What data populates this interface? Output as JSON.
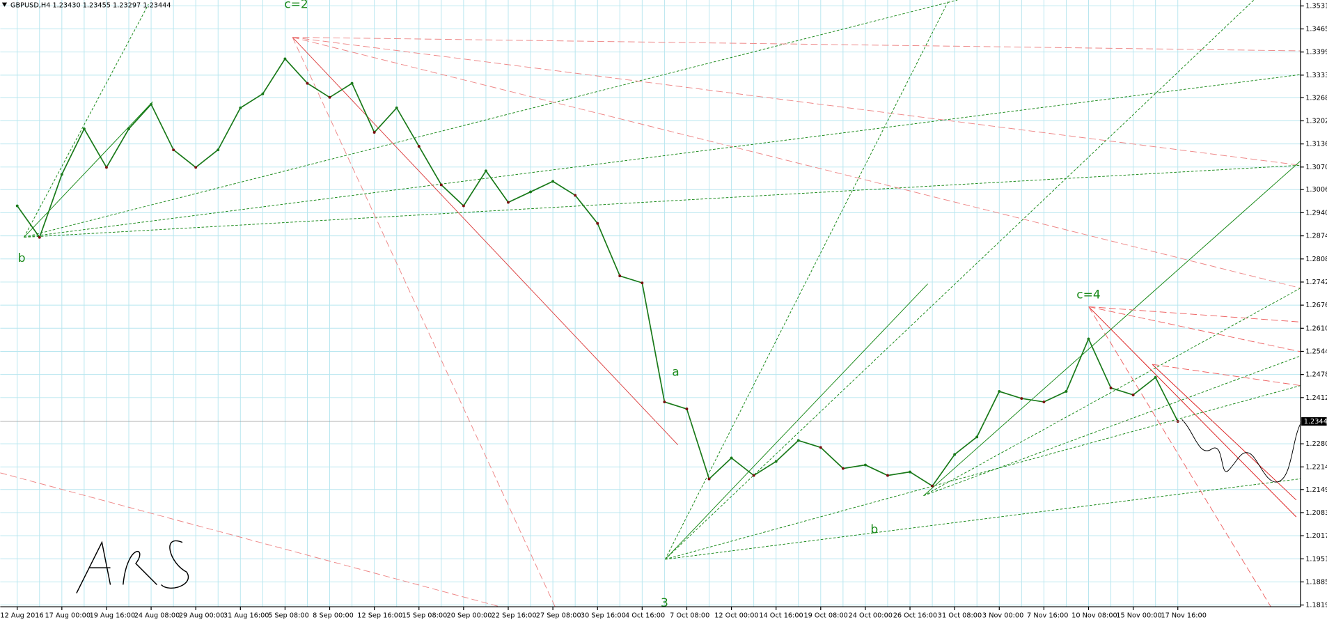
{
  "chart_data": {
    "type": "line",
    "title": "GBPUSD,H4  1.23430 1.23455 1.23297 1.23444",
    "categories": [
      "12 Aug 2016",
      null,
      "17 Aug 00:00",
      null,
      "19 Aug 16:00",
      null,
      "24 Aug 08:00",
      null,
      "29 Aug 00:00",
      null,
      "31 Aug 16:00",
      null,
      "5 Sep 08:00",
      null,
      "8 Sep 00:00",
      null,
      "12 Sep 16:00",
      null,
      "15 Sep 08:00",
      null,
      "20 Sep 00:00",
      null,
      "22 Sep 16:00",
      null,
      "27 Sep 08:00",
      null,
      "30 Sep 16:00",
      null,
      "4 Oct 16:00",
      null,
      "7 Oct 08:00",
      null,
      "12 Oct 00:00",
      null,
      "14 Oct 16:00",
      null,
      "19 Oct 08:00",
      null,
      "24 Oct 00:00",
      null,
      "26 Oct 16:00",
      null,
      "31 Oct 08:00",
      null,
      "3 Nov 00:00",
      null,
      "7 Nov 16:00",
      null,
      "10 Nov 08:00",
      null,
      "15 Nov 00:00",
      null,
      "17 Nov 16:00"
    ],
    "series": [
      {
        "name": "GBPUSD,H4",
        "color": "#1a7a1a",
        "values": [
          1.296,
          1.287,
          1.305,
          1.318,
          1.307,
          1.318,
          1.325,
          1.312,
          1.307,
          1.312,
          1.324,
          1.328,
          1.338,
          1.331,
          1.327,
          1.331,
          1.317,
          1.324,
          1.313,
          1.302,
          1.296,
          1.306,
          1.297,
          1.3,
          1.303,
          1.299,
          1.291,
          1.276,
          1.274,
          1.24,
          1.238,
          1.218,
          1.224,
          1.219,
          1.223,
          1.229,
          1.227,
          1.221,
          1.222,
          1.219,
          1.22,
          1.216,
          1.225,
          1.23,
          1.243,
          1.241,
          1.24,
          1.243,
          1.258,
          1.244,
          1.242,
          1.247,
          1.23444
        ]
      }
    ],
    "ylim": [
      1.1815,
      1.3548
    ],
    "yticks": [
      {
        "value": 1.3531,
        "label": "1.35310"
      },
      1.34654,
      1.33994,
      1.33334,
      1.32689,
      1.32029,
      1.31369,
      1.30709,
      1.30064,
      1.29404,
      1.28744,
      1.28084,
      1.27424,
      1.26764,
      1.26104,
      1.25444,
      1.24784,
      1.24124,
      1.22804,
      1.22144,
      1.21499,
      1.20839,
      1.20179,
      1.19519,
      1.18859,
      1.18199
    ],
    "last_price": 1.23444,
    "grid": true,
    "annotations": [
      {
        "text": "c=2",
        "index": 12.5,
        "price": 1.3535
      },
      {
        "text": "b",
        "index": 0.2,
        "price": 1.281
      },
      {
        "text": "3",
        "index": 29,
        "price": 1.1825
      },
      {
        "text": "a",
        "index": 29.5,
        "price": 1.2485
      },
      {
        "text": "b",
        "index": 38.4,
        "price": 1.2035
      },
      {
        "text": "c=4",
        "index": 48,
        "price": 1.2705
      }
    ]
  }
}
